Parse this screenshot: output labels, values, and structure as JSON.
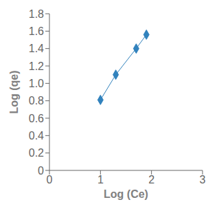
{
  "chart_data": {
    "type": "line",
    "x": [
      1.0,
      1.3,
      1.7,
      1.9
    ],
    "values": [
      0.81,
      1.1,
      1.4,
      1.56
    ],
    "xlabel": "Log (Ce)",
    "ylabel": "Log (qe)",
    "xlim": [
      0,
      3
    ],
    "ylim": [
      0,
      1.8
    ],
    "xticks": [
      0,
      1,
      2,
      3
    ],
    "yticks": [
      0,
      0.2,
      0.4,
      0.6,
      0.8,
      {
        "value": 1.0,
        "label": "1.0"
      },
      1.2,
      1.4,
      1.6,
      1.8
    ],
    "marker": "diamond",
    "grid": false
  }
}
